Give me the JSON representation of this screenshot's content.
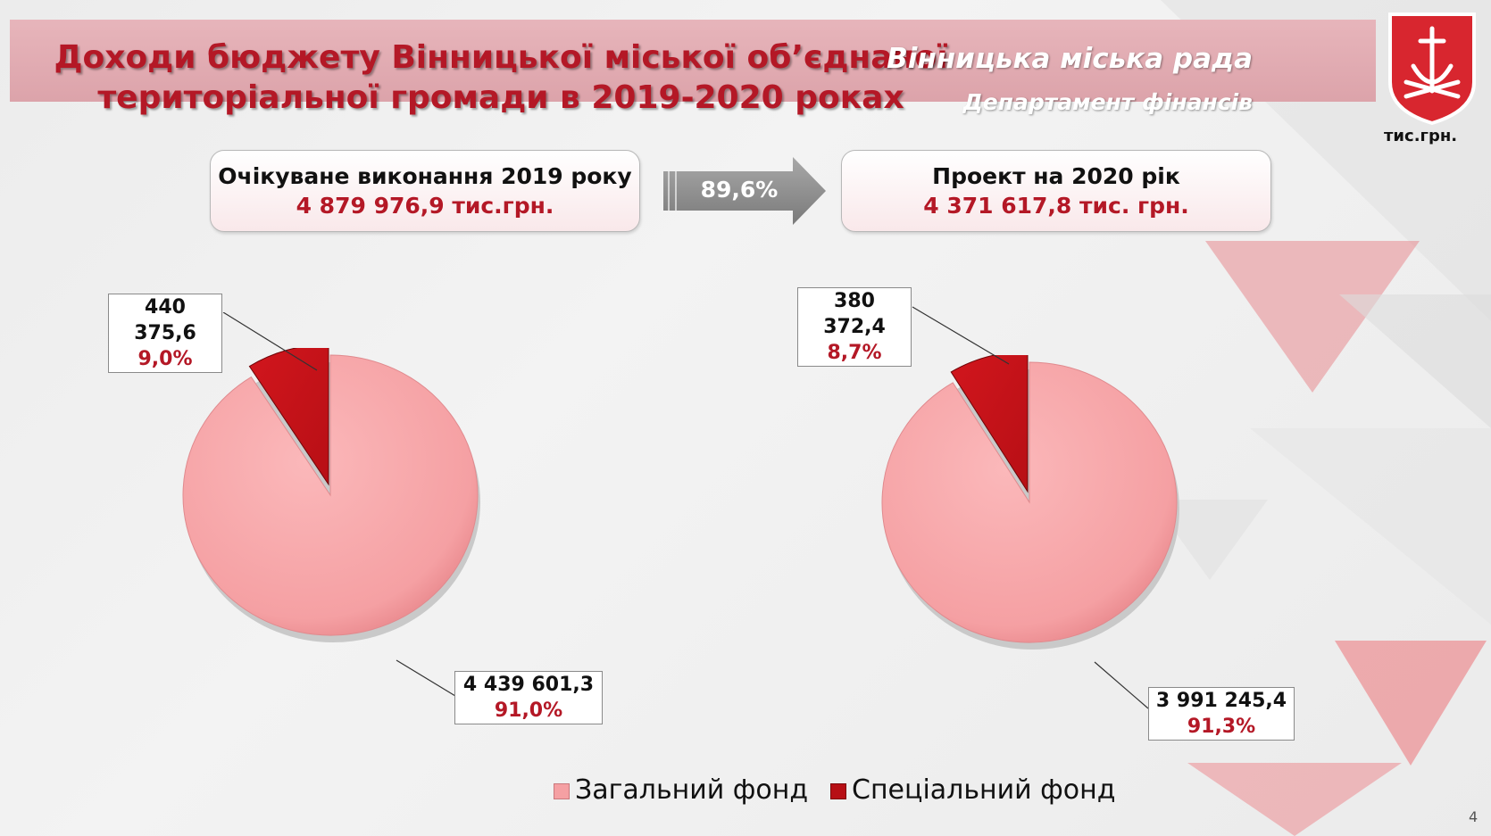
{
  "header": {
    "title": "Доходи бюджету Вінницької міської об’єднаної\nтериторіальної громади в 2019-2020 роках",
    "org": "Вінницька міська рада",
    "department": "Департамент фінансів",
    "units": "тис.грн."
  },
  "summary": {
    "left_label": "Очікуване виконання 2019 року",
    "left_value": "4 879 976,9 тис.грн.",
    "change": "89,6%",
    "right_label": "Проект на 2020 рік",
    "right_value": "4 371 617,8 тис. грн."
  },
  "colors": {
    "general_fund": "#f5a0a3",
    "special_fund": "#b70f15",
    "accent": "#b41826"
  },
  "chart_data": [
    {
      "type": "pie",
      "categories": [
        "Загальний фонд",
        "Спеціальний фонд"
      ],
      "values": [
        4439601.3,
        440375.6
      ],
      "value_labels": [
        "4 439 601,3",
        "440 375,6"
      ],
      "percent_labels": [
        "91,0%",
        "9,0%"
      ]
    },
    {
      "type": "pie",
      "categories": [
        "Загальний фонд",
        "Спеціальний фонд"
      ],
      "values": [
        3991245.4,
        380372.4
      ],
      "value_labels": [
        "3 991 245,4",
        "380 372,4"
      ],
      "percent_labels": [
        "91,3%",
        "8,7%"
      ]
    }
  ],
  "legend": {
    "items": [
      "Загальний фонд",
      "Спеціальний фонд"
    ],
    "position": "bottom"
  },
  "page_number": "4"
}
